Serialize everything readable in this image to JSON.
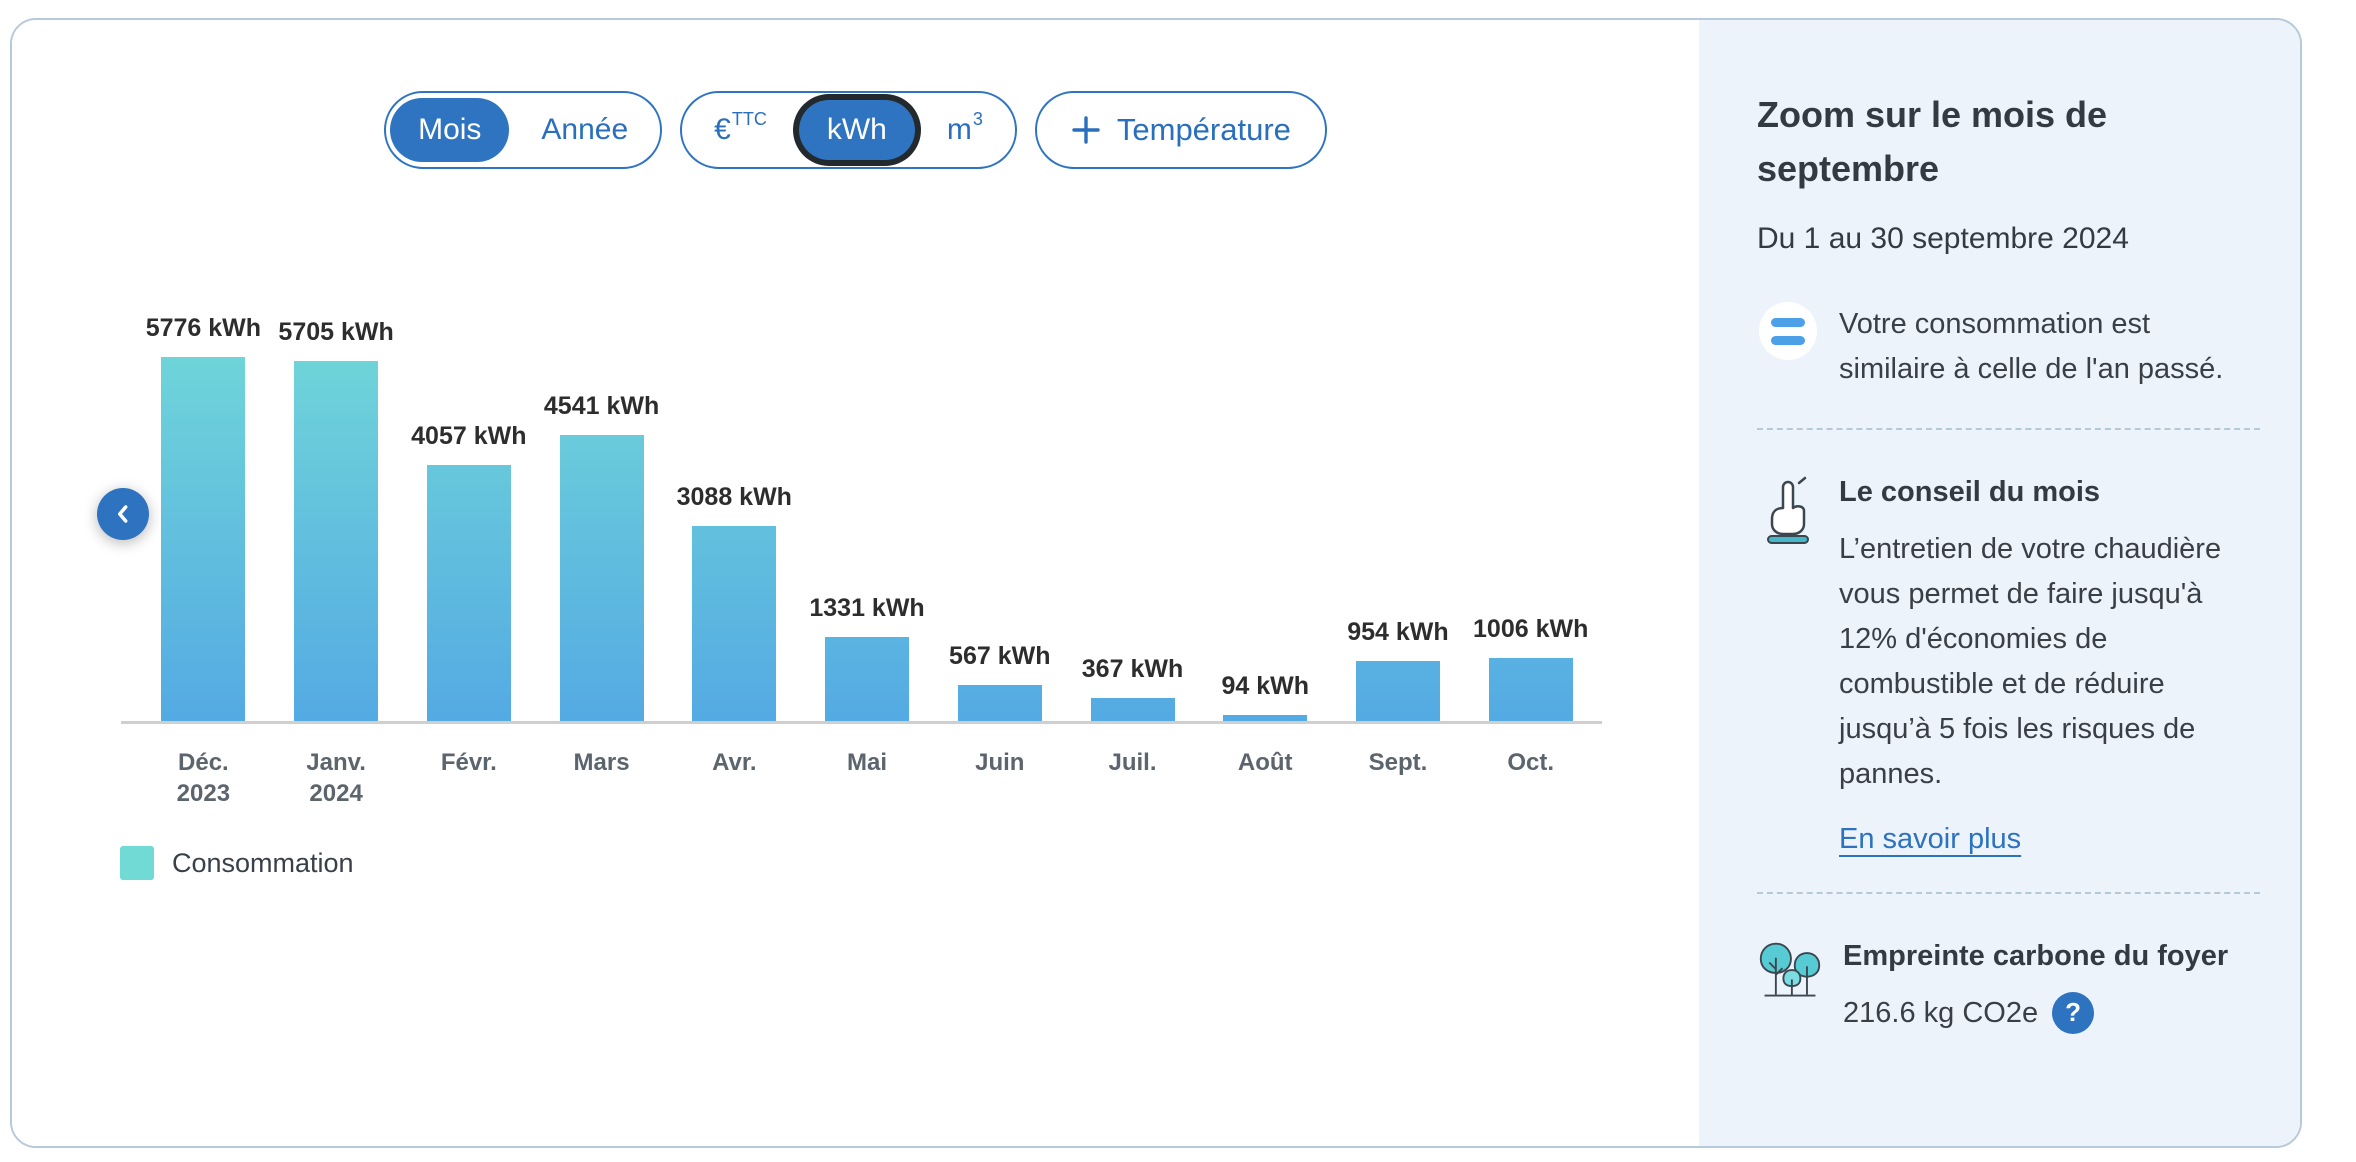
{
  "toolbar": {
    "period": {
      "options": [
        "Mois",
        "Année"
      ],
      "selected": "Mois"
    },
    "unit": {
      "euro": {
        "base": "€",
        "sup": "TTC"
      },
      "kwh": "kWh",
      "m3": {
        "base": "m",
        "sup": "3"
      },
      "selected": "kWh"
    },
    "temperature_label": "Température"
  },
  "chart_data": {
    "type": "bar",
    "title": "",
    "unit": "kWh",
    "categories": [
      "Déc. 2023",
      "Janv. 2024",
      "Févr.",
      "Mars",
      "Avr.",
      "Mai",
      "Juin",
      "Juil.",
      "Août",
      "Sept.",
      "Oct."
    ],
    "category_lines": [
      [
        "Déc.",
        "2023"
      ],
      [
        "Janv.",
        "2024"
      ],
      [
        "Févr."
      ],
      [
        "Mars"
      ],
      [
        "Avr."
      ],
      [
        "Mai"
      ],
      [
        "Juin"
      ],
      [
        "Juil."
      ],
      [
        "Août"
      ],
      [
        "Sept."
      ],
      [
        "Oct."
      ]
    ],
    "values": [
      5776,
      5705,
      4057,
      4541,
      3088,
      1331,
      567,
      367,
      94,
      954,
      1006
    ],
    "value_label_suffix": " kWh",
    "series": [
      {
        "name": "Consommation",
        "values": [
          5776,
          5705,
          4057,
          4541,
          3088,
          1331,
          567,
          367,
          94,
          954,
          1006
        ]
      }
    ],
    "ylim": [
      0,
      5776
    ],
    "grid": false,
    "legend": {
      "label": "Consommation",
      "position": "bottom-left",
      "swatch_color": "#71dad5"
    },
    "bar_gradient_top": "#6fd4d9",
    "bar_gradient_bottom": "#54aae3",
    "axis_color": "#cfcfcf"
  },
  "colors": {
    "accent_blue": "#2e74c1",
    "sidebar_bg": "#edf3fb",
    "focus_ring": "#24292e"
  },
  "sidebar": {
    "title": "Zoom sur le mois de septembre",
    "date_range": "Du 1 au 30 septembre 2024",
    "comparison_text": "Votre consommation est similaire à celle de l'an passé.",
    "advice": {
      "heading": "Le conseil du mois",
      "body": "L’entretien de votre chaudière vous permet de faire jusqu'à 12% d'économies de combustible et de réduire jusqu’à 5 fois les risques de pannes.",
      "link_label": "En savoir plus"
    },
    "carbon": {
      "heading": "Empreinte carbone du foyer",
      "value": "216.6 kg CO2e",
      "help_label": "?"
    }
  }
}
